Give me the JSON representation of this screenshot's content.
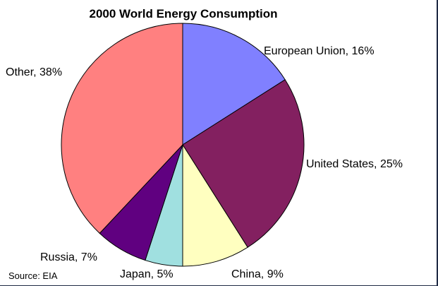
{
  "chart_data": {
    "type": "pie",
    "title": "2000 World Energy Consumption",
    "source": "Source: EIA",
    "slices": [
      {
        "name": "European Union",
        "value": 16,
        "label": "European Union, 16%",
        "color": "#8080ff"
      },
      {
        "name": "United States",
        "value": 25,
        "label": "United States, 25%",
        "color": "#832060"
      },
      {
        "name": "China",
        "value": 9,
        "label": "China, 9%",
        "color": "#ffffc0"
      },
      {
        "name": "Japan",
        "value": 5,
        "label": "Japan, 5%",
        "color": "#a0e0e0"
      },
      {
        "name": "Russia",
        "value": 7,
        "label": "Russia, 7%",
        "color": "#600080"
      },
      {
        "name": "Other",
        "value": 38,
        "label": "Other, 38%",
        "color": "#ff8080"
      }
    ],
    "start_angle": "top",
    "direction": "clockwise"
  }
}
